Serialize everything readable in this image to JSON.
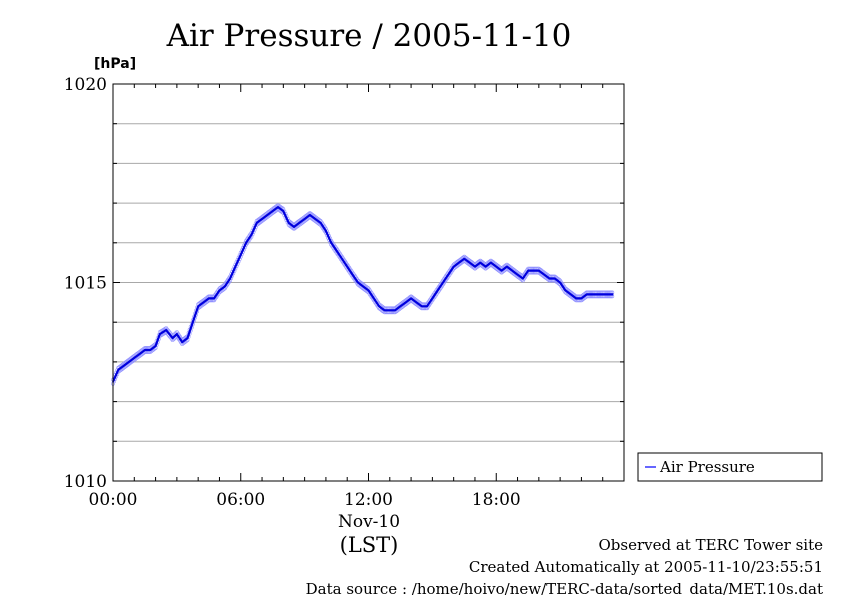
{
  "chart_data": {
    "type": "line",
    "title": "Air Pressure / 2005-11-10",
    "ylabel": "[hPa]",
    "xlabel": "(LST)",
    "x_sub_label": "Nov-10",
    "ylim": [
      1010,
      1020
    ],
    "xlim_hours": [
      0,
      24
    ],
    "y_ticks": [
      1010,
      1015,
      1020
    ],
    "x_ticks": [
      {
        "hour": 0,
        "label": "00:00"
      },
      {
        "hour": 6,
        "label": "06:00"
      },
      {
        "hour": 12,
        "label": "12:00"
      },
      {
        "hour": 18,
        "label": "18:00"
      }
    ],
    "grid": true,
    "legend_position": "right",
    "series": [
      {
        "name": "Air Pressure",
        "color": "#3333ff",
        "x_hours": [
          0,
          0.25,
          0.5,
          0.75,
          1.0,
          1.25,
          1.5,
          1.75,
          2.0,
          2.2,
          2.5,
          2.8,
          3.0,
          3.25,
          3.5,
          3.75,
          4.0,
          4.25,
          4.5,
          4.75,
          5.0,
          5.25,
          5.5,
          5.75,
          6.0,
          6.25,
          6.5,
          6.75,
          7.0,
          7.25,
          7.5,
          7.75,
          8.0,
          8.25,
          8.5,
          8.75,
          9.0,
          9.25,
          9.5,
          9.75,
          10.0,
          10.25,
          10.5,
          10.75,
          11.0,
          11.25,
          11.5,
          11.75,
          12.0,
          12.25,
          12.5,
          12.75,
          13.0,
          13.25,
          13.5,
          13.75,
          14.0,
          14.25,
          14.5,
          14.75,
          15.0,
          15.25,
          15.5,
          15.75,
          16.0,
          16.25,
          16.5,
          16.75,
          17.0,
          17.25,
          17.5,
          17.75,
          18.0,
          18.25,
          18.5,
          18.75,
          19.0,
          19.25,
          19.5,
          19.75,
          20.0,
          20.25,
          20.5,
          20.75,
          21.0,
          21.25,
          21.5,
          21.75,
          22.0,
          22.25,
          22.5,
          22.75,
          23.0,
          23.25,
          23.5
        ],
        "values": [
          1012.5,
          1012.8,
          1012.9,
          1013.0,
          1013.1,
          1013.2,
          1013.3,
          1013.3,
          1013.4,
          1013.7,
          1013.8,
          1013.6,
          1013.7,
          1013.5,
          1013.6,
          1014.0,
          1014.4,
          1014.5,
          1014.6,
          1014.6,
          1014.8,
          1014.9,
          1015.1,
          1015.4,
          1015.7,
          1016.0,
          1016.2,
          1016.5,
          1016.6,
          1016.7,
          1016.8,
          1016.9,
          1016.8,
          1016.5,
          1016.4,
          1016.5,
          1016.6,
          1016.7,
          1016.6,
          1016.5,
          1016.3,
          1016.0,
          1015.8,
          1015.6,
          1015.4,
          1015.2,
          1015.0,
          1014.9,
          1014.8,
          1014.6,
          1014.4,
          1014.3,
          1014.3,
          1014.3,
          1014.4,
          1014.5,
          1014.6,
          1014.5,
          1014.4,
          1014.4,
          1014.6,
          1014.8,
          1015.0,
          1015.2,
          1015.4,
          1015.5,
          1015.6,
          1015.5,
          1015.4,
          1015.5,
          1015.4,
          1015.5,
          1015.4,
          1015.3,
          1015.4,
          1015.3,
          1015.2,
          1015.1,
          1015.3,
          1015.3,
          1015.3,
          1015.2,
          1015.1,
          1015.1,
          1015.0,
          1014.8,
          1014.7,
          1014.6,
          1014.6,
          1014.7,
          1014.7,
          1014.7,
          1014.7,
          1014.7,
          1014.7
        ]
      }
    ]
  },
  "footer": {
    "line1": "Observed at TERC Tower site",
    "line2": "Created Automatically at 2005-11-10/23:55:51",
    "line3": "Data source : /home/hoivo/new/TERC-data/sorted_data/MET.10s.dat"
  }
}
